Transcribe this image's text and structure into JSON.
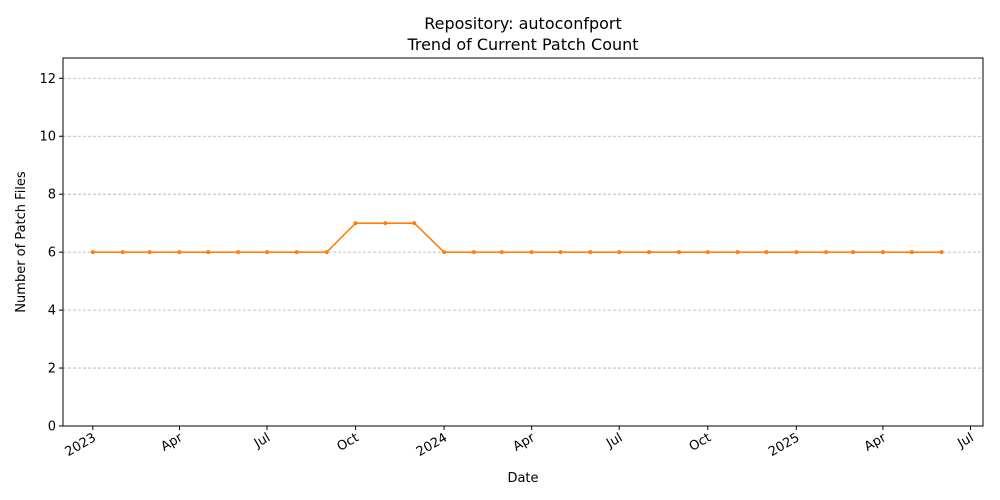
{
  "chart_data": {
    "type": "line",
    "title_line1": "Repository: autoconfport",
    "title_line2": "Trend of Current Patch Count",
    "xlabel": "Date",
    "ylabel": "Number of Patch Files",
    "ylim": [
      0,
      12.7
    ],
    "yticks": [
      0,
      2,
      4,
      6,
      8,
      10,
      12
    ],
    "xlim": [
      "2022-12-01",
      "2025-07-14"
    ],
    "xticks": [
      {
        "date": "2023-01-01",
        "label": "2023"
      },
      {
        "date": "2023-04-01",
        "label": "Apr"
      },
      {
        "date": "2023-07-01",
        "label": "Jul"
      },
      {
        "date": "2023-10-01",
        "label": "Oct"
      },
      {
        "date": "2024-01-01",
        "label": "2024"
      },
      {
        "date": "2024-04-01",
        "label": "Apr"
      },
      {
        "date": "2024-07-01",
        "label": "Jul"
      },
      {
        "date": "2024-10-01",
        "label": "Oct"
      },
      {
        "date": "2025-01-01",
        "label": "2025"
      },
      {
        "date": "2025-04-01",
        "label": "Apr"
      },
      {
        "date": "2025-07-01",
        "label": "Jul"
      }
    ],
    "grid": "y",
    "series": [
      {
        "name": "Current Patch Count",
        "color": "#ff7f0e",
        "x": [
          "2023-01-01",
          "2023-02-01",
          "2023-03-01",
          "2023-04-01",
          "2023-05-01",
          "2023-06-01",
          "2023-07-01",
          "2023-08-01",
          "2023-09-01",
          "2023-10-01",
          "2023-11-01",
          "2023-12-01",
          "2024-01-01",
          "2024-02-01",
          "2024-03-01",
          "2024-04-01",
          "2024-05-01",
          "2024-06-01",
          "2024-07-01",
          "2024-08-01",
          "2024-09-01",
          "2024-10-01",
          "2024-11-01",
          "2024-12-01",
          "2025-01-01",
          "2025-02-01",
          "2025-03-01",
          "2025-04-01",
          "2025-05-01",
          "2025-06-01"
        ],
        "values": [
          6,
          6,
          6,
          6,
          6,
          6,
          6,
          6,
          6,
          7,
          7,
          7,
          6,
          6,
          6,
          6,
          6,
          6,
          6,
          6,
          6,
          6,
          6,
          6,
          6,
          6,
          6,
          6,
          6,
          6
        ]
      }
    ]
  }
}
